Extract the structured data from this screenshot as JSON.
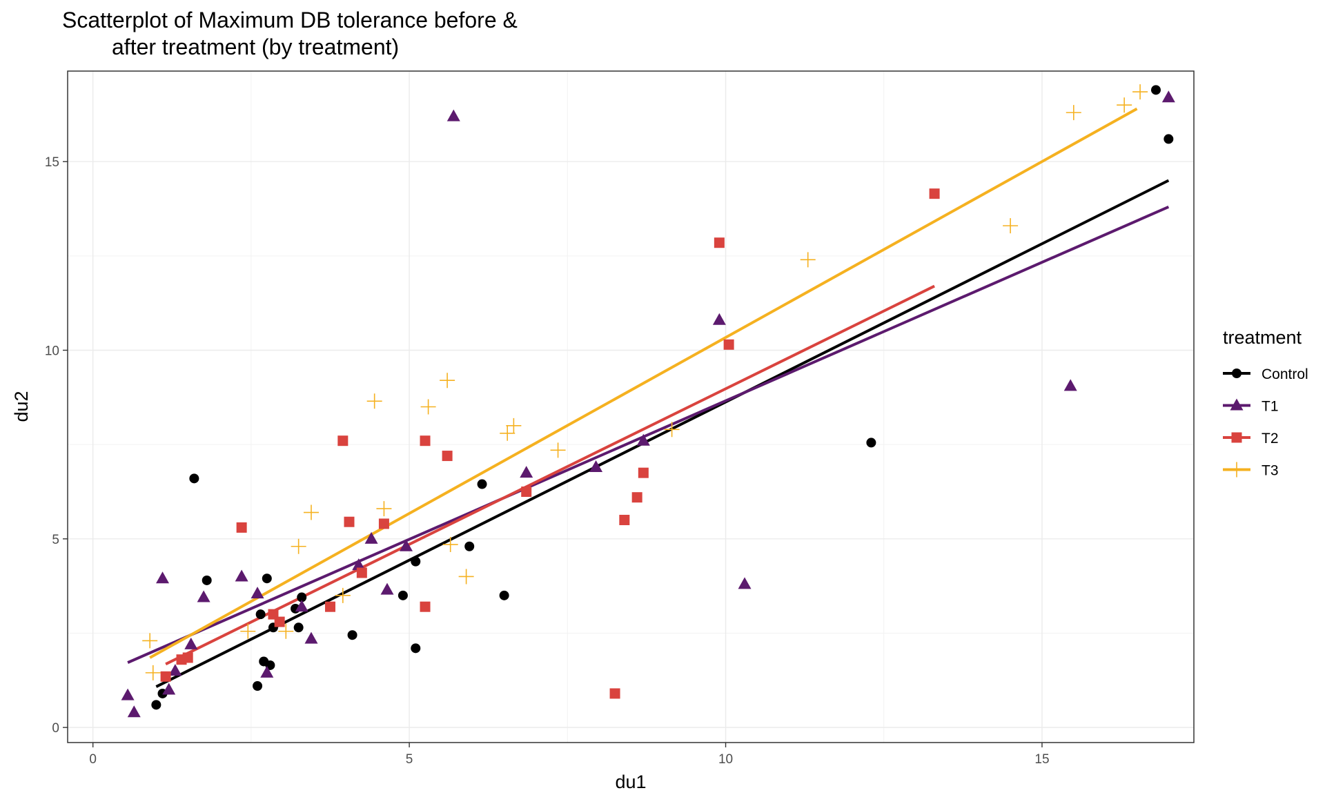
{
  "chart_data": {
    "type": "scatter",
    "title_lines": [
      "Scatterplot of Maximum DB tolerance before &",
      "after treatment (by treatment)"
    ],
    "xlabel": "du1",
    "ylabel": "du2",
    "xlim": [
      -0.4,
      17.4
    ],
    "ylim": [
      -0.4,
      17.4
    ],
    "x_ticks": [
      0,
      5,
      10,
      15
    ],
    "y_ticks": [
      0,
      5,
      10,
      15
    ],
    "x_tick_labels": [
      "0",
      "5",
      "10",
      "15"
    ],
    "y_tick_labels": [
      "0",
      "5",
      "10",
      "15"
    ],
    "grid": true,
    "legend": {
      "title": "treatment",
      "position": "right"
    },
    "series": [
      {
        "name": "Control",
        "color": "#000000",
        "marker": "circle",
        "points": [
          [
            1.0,
            0.6
          ],
          [
            1.1,
            0.9
          ],
          [
            1.6,
            6.6
          ],
          [
            1.8,
            3.9
          ],
          [
            2.6,
            1.1
          ],
          [
            2.65,
            3.0
          ],
          [
            2.7,
            1.75
          ],
          [
            2.75,
            3.95
          ],
          [
            2.8,
            1.65
          ],
          [
            2.85,
            2.65
          ],
          [
            3.2,
            3.15
          ],
          [
            3.25,
            2.65
          ],
          [
            3.3,
            3.45
          ],
          [
            4.1,
            2.45
          ],
          [
            4.9,
            3.5
          ],
          [
            5.1,
            2.1
          ],
          [
            5.1,
            4.4
          ],
          [
            5.95,
            4.8
          ],
          [
            6.15,
            6.45
          ],
          [
            6.5,
            3.5
          ],
          [
            12.3,
            7.55
          ],
          [
            16.8,
            16.9
          ],
          [
            17.0,
            15.6
          ]
        ],
        "fit": [
          [
            1.0,
            1.08
          ],
          [
            17.0,
            14.5
          ]
        ]
      },
      {
        "name": "T1",
        "color": "#5c1a6e",
        "marker": "triangle",
        "points": [
          [
            0.55,
            0.85
          ],
          [
            0.65,
            0.4
          ],
          [
            1.1,
            3.95
          ],
          [
            1.2,
            1.0
          ],
          [
            1.3,
            1.5
          ],
          [
            1.55,
            2.2
          ],
          [
            1.75,
            3.45
          ],
          [
            2.35,
            4.0
          ],
          [
            2.6,
            3.55
          ],
          [
            2.75,
            1.45
          ],
          [
            3.3,
            3.2
          ],
          [
            3.45,
            2.35
          ],
          [
            4.2,
            4.3
          ],
          [
            4.4,
            5.0
          ],
          [
            4.65,
            3.65
          ],
          [
            4.95,
            4.8
          ],
          [
            5.7,
            16.2
          ],
          [
            6.85,
            6.75
          ],
          [
            7.95,
            6.9
          ],
          [
            8.7,
            7.6
          ],
          [
            9.9,
            10.8
          ],
          [
            10.3,
            3.8
          ],
          [
            15.45,
            9.05
          ],
          [
            17.0,
            16.7
          ]
        ],
        "fit": [
          [
            0.55,
            1.72
          ],
          [
            17.0,
            13.8
          ]
        ]
      },
      {
        "name": "T2",
        "color": "#d9433e",
        "marker": "square",
        "points": [
          [
            1.15,
            1.35
          ],
          [
            1.4,
            1.8
          ],
          [
            1.5,
            1.85
          ],
          [
            2.35,
            5.3
          ],
          [
            2.85,
            3.0
          ],
          [
            2.95,
            2.8
          ],
          [
            3.75,
            3.2
          ],
          [
            3.95,
            7.6
          ],
          [
            4.05,
            5.45
          ],
          [
            4.25,
            4.1
          ],
          [
            4.6,
            5.4
          ],
          [
            5.25,
            7.6
          ],
          [
            5.25,
            3.2
          ],
          [
            5.6,
            7.2
          ],
          [
            6.85,
            6.25
          ],
          [
            8.25,
            0.9
          ],
          [
            8.4,
            5.5
          ],
          [
            8.6,
            6.1
          ],
          [
            8.7,
            6.75
          ],
          [
            9.9,
            12.85
          ],
          [
            10.05,
            10.15
          ],
          [
            13.3,
            14.15
          ]
        ],
        "fit": [
          [
            1.15,
            1.68
          ],
          [
            13.3,
            11.7
          ]
        ]
      },
      {
        "name": "T3",
        "color": "#f5b120",
        "marker": "plus",
        "points": [
          [
            0.9,
            2.3
          ],
          [
            0.95,
            1.45
          ],
          [
            2.45,
            2.55
          ],
          [
            3.05,
            2.55
          ],
          [
            3.25,
            4.8
          ],
          [
            3.45,
            5.7
          ],
          [
            3.95,
            3.5
          ],
          [
            4.45,
            8.65
          ],
          [
            4.6,
            5.8
          ],
          [
            5.3,
            8.5
          ],
          [
            5.6,
            9.2
          ],
          [
            5.65,
            4.85
          ],
          [
            5.9,
            4.0
          ],
          [
            6.55,
            7.8
          ],
          [
            6.65,
            8.0
          ],
          [
            7.35,
            7.35
          ],
          [
            9.15,
            7.9
          ],
          [
            11.3,
            12.4
          ],
          [
            14.5,
            13.3
          ],
          [
            15.5,
            16.3
          ],
          [
            16.3,
            16.5
          ],
          [
            16.55,
            16.85
          ]
        ],
        "fit": [
          [
            0.9,
            1.85
          ],
          [
            16.5,
            16.4
          ]
        ]
      }
    ]
  }
}
